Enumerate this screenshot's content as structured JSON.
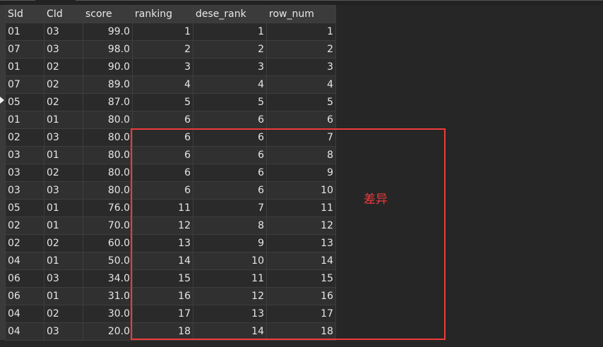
{
  "columns": [
    "SId",
    "CId",
    "score",
    "ranking",
    "dese_rank",
    "row_num"
  ],
  "rows": [
    [
      "01",
      "03",
      "99.0",
      "1",
      "1",
      "1"
    ],
    [
      "07",
      "03",
      "98.0",
      "2",
      "2",
      "2"
    ],
    [
      "01",
      "02",
      "90.0",
      "3",
      "3",
      "3"
    ],
    [
      "07",
      "02",
      "89.0",
      "4",
      "4",
      "4"
    ],
    [
      "05",
      "02",
      "87.0",
      "5",
      "5",
      "5"
    ],
    [
      "01",
      "01",
      "80.0",
      "6",
      "6",
      "6"
    ],
    [
      "02",
      "03",
      "80.0",
      "6",
      "6",
      "7"
    ],
    [
      "03",
      "01",
      "80.0",
      "6",
      "6",
      "8"
    ],
    [
      "03",
      "02",
      "80.0",
      "6",
      "6",
      "9"
    ],
    [
      "03",
      "03",
      "80.0",
      "6",
      "6",
      "10"
    ],
    [
      "05",
      "01",
      "76.0",
      "11",
      "7",
      "11"
    ],
    [
      "02",
      "01",
      "70.0",
      "12",
      "8",
      "12"
    ],
    [
      "02",
      "02",
      "60.0",
      "13",
      "9",
      "13"
    ],
    [
      "04",
      "01",
      "50.0",
      "14",
      "10",
      "14"
    ],
    [
      "06",
      "03",
      "34.0",
      "15",
      "11",
      "15"
    ],
    [
      "06",
      "01",
      "31.0",
      "16",
      "12",
      "16"
    ],
    [
      "04",
      "02",
      "30.0",
      "17",
      "13",
      "17"
    ],
    [
      "04",
      "03",
      "20.0",
      "18",
      "14",
      "18"
    ]
  ],
  "annotation": {
    "label": "差异",
    "color": "#f03a3a"
  }
}
